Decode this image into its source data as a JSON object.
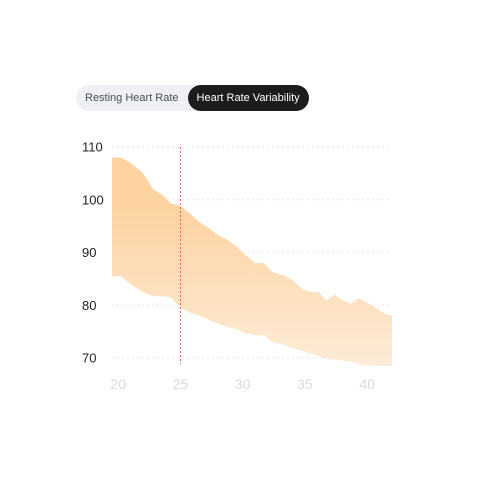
{
  "tabs": [
    {
      "label": "Resting Heart Rate",
      "active": false
    },
    {
      "label": "Heart Rate Variability",
      "active": true
    }
  ],
  "colors": {
    "band_top": "#fdd3a2",
    "band_bottom": "#fdecd9",
    "marker_line": "#e0664a",
    "grid": "#e6e6e6",
    "tab_active_bg": "#1b1c1e",
    "tab_inactive_bg": "#eef0f3"
  },
  "chart_data": {
    "type": "area",
    "x_ticks": [
      20,
      25,
      30,
      35,
      40
    ],
    "y_ticks": [
      70,
      80,
      90,
      100,
      110
    ],
    "xlim": [
      19.5,
      42
    ],
    "ylim": [
      68,
      112
    ],
    "grid": true,
    "marker_x": 25,
    "x": [
      19.5,
      20.2,
      21.0,
      22.0,
      22.8,
      23.5,
      24.2,
      25.0,
      25.8,
      26.5,
      27.2,
      28.0,
      28.7,
      29.5,
      30.2,
      31.0,
      31.7,
      32.4,
      33.2,
      34.0,
      34.8,
      35.5,
      36.1,
      36.7,
      37.4,
      38.0,
      38.7,
      39.3,
      40.0,
      40.7,
      41.4,
      42.0
    ],
    "upper": [
      108,
      108,
      107,
      105,
      102,
      101,
      99.3,
      98.8,
      97.3,
      95.8,
      94.8,
      93.3,
      92.5,
      91.2,
      89.5,
      88,
      88,
      86.3,
      85.8,
      84.8,
      83,
      82.5,
      82.5,
      80.9,
      82,
      81,
      80.3,
      81.3,
      80.5,
      79.5,
      78.5,
      78
    ],
    "lower": [
      85.5,
      85.5,
      84,
      82.5,
      81.7,
      81.7,
      81.5,
      79.5,
      78.6,
      78,
      77.3,
      76.5,
      75.9,
      75.5,
      74.7,
      74.3,
      74.3,
      73,
      72.6,
      71.9,
      71.3,
      70.8,
      70.3,
      69.9,
      69.7,
      69.5,
      69.3,
      68.8,
      68.6,
      68.5,
      68.5,
      68.4
    ]
  }
}
